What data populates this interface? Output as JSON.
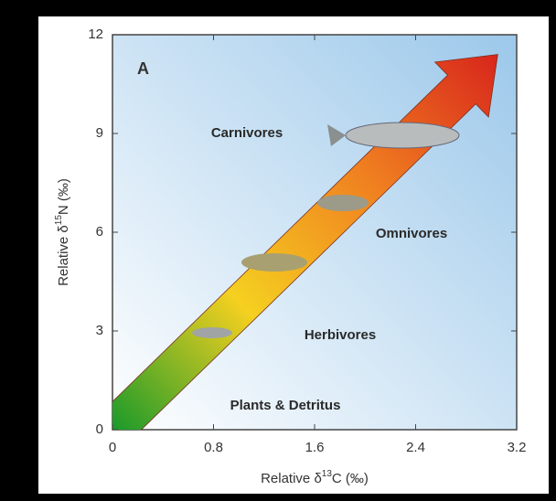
{
  "chart_data": {
    "type": "arrow",
    "panel_label": "A",
    "x_label": {
      "prefix": "Relative δ",
      "sup": "13",
      "suffix": "C (‰)"
    },
    "y_label": {
      "prefix": "Relative δ",
      "sup": "15",
      "suffix": "N (‰)"
    },
    "x": [
      0,
      3.05
    ],
    "values": [
      0,
      11.4
    ],
    "colors": [
      "#1a9a2a",
      "#f5d020",
      "#f08020",
      "#d8261c"
    ],
    "xlim": [
      0,
      3.2
    ],
    "ylim": [
      0,
      12
    ],
    "xticks": [
      0,
      0.8,
      1.6,
      2.4,
      3.2
    ],
    "yticks": [
      0,
      3,
      6,
      9,
      12
    ],
    "annotations": [
      "Carnivores",
      "Omnivores",
      "Herbivores",
      "Plants & Detritus"
    ]
  }
}
